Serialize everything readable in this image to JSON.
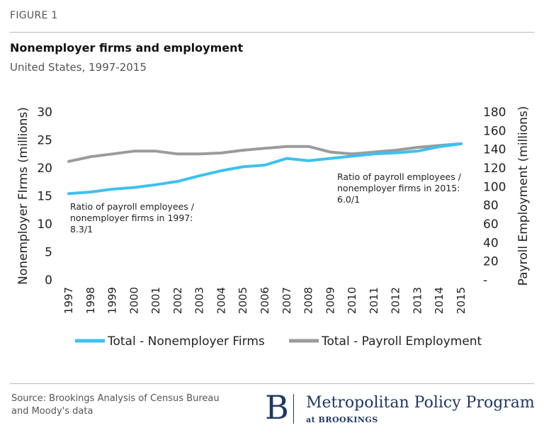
{
  "figure": {
    "label": "FIGURE 1",
    "title": "Nonemployer firms and employment",
    "subtitle": "United States, 1997-2015"
  },
  "footer": {
    "source": "Source: Brookings Analysis of Census Bureau and Moody's data",
    "logo_letter": "B",
    "logo_name": "Metropolitan Policy Program",
    "logo_sub": "at BROOKINGS"
  },
  "colors": {
    "nonemployer": "#3ec1ec",
    "payroll": "#9b9b9b",
    "brand": "#1f3864"
  },
  "chart_data": {
    "type": "line",
    "x": [
      "1997",
      "1998",
      "1999",
      "2000",
      "2001",
      "2002",
      "2003",
      "2004",
      "2005",
      "2006",
      "2007",
      "2008",
      "2009",
      "2010",
      "2011",
      "2012",
      "2013",
      "2014",
      "2015"
    ],
    "series": [
      {
        "name": "Total - Nonemployer Firms",
        "axis": "left",
        "values": [
          15.4,
          15.7,
          16.2,
          16.5,
          17.0,
          17.6,
          18.6,
          19.5,
          20.2,
          20.5,
          21.7,
          21.3,
          21.7,
          22.1,
          22.5,
          22.7,
          23.0,
          23.8,
          24.3
        ]
      },
      {
        "name": "Total - Payroll Employment",
        "axis": "right",
        "values": [
          127,
          132,
          135,
          138,
          138,
          135,
          135,
          136,
          139,
          141,
          143,
          143,
          137,
          135,
          137,
          139,
          142,
          144,
          146
        ]
      }
    ],
    "y_left": {
      "label": "Nonemployer FIrms (millions)",
      "range": [
        0,
        30
      ],
      "ticks": [
        "0",
        "5",
        "10",
        "15",
        "20",
        "25",
        "30"
      ]
    },
    "y_right": {
      "label": "Payroll Employment (millions)",
      "range": [
        0,
        180
      ],
      "ticks": [
        "-",
        "20",
        "40",
        "60",
        "80",
        "100",
        "120",
        "140",
        "160",
        "180"
      ]
    },
    "annotations": [
      {
        "text": [
          "Ratio of payroll employees /",
          "nonemployer firms in 1997:",
          "8.3/1"
        ]
      },
      {
        "text": [
          "Ratio of payroll employees /",
          "nonemployer firms in 2015:",
          "6.0/1"
        ]
      }
    ],
    "grid": false,
    "legend": "bottom"
  }
}
